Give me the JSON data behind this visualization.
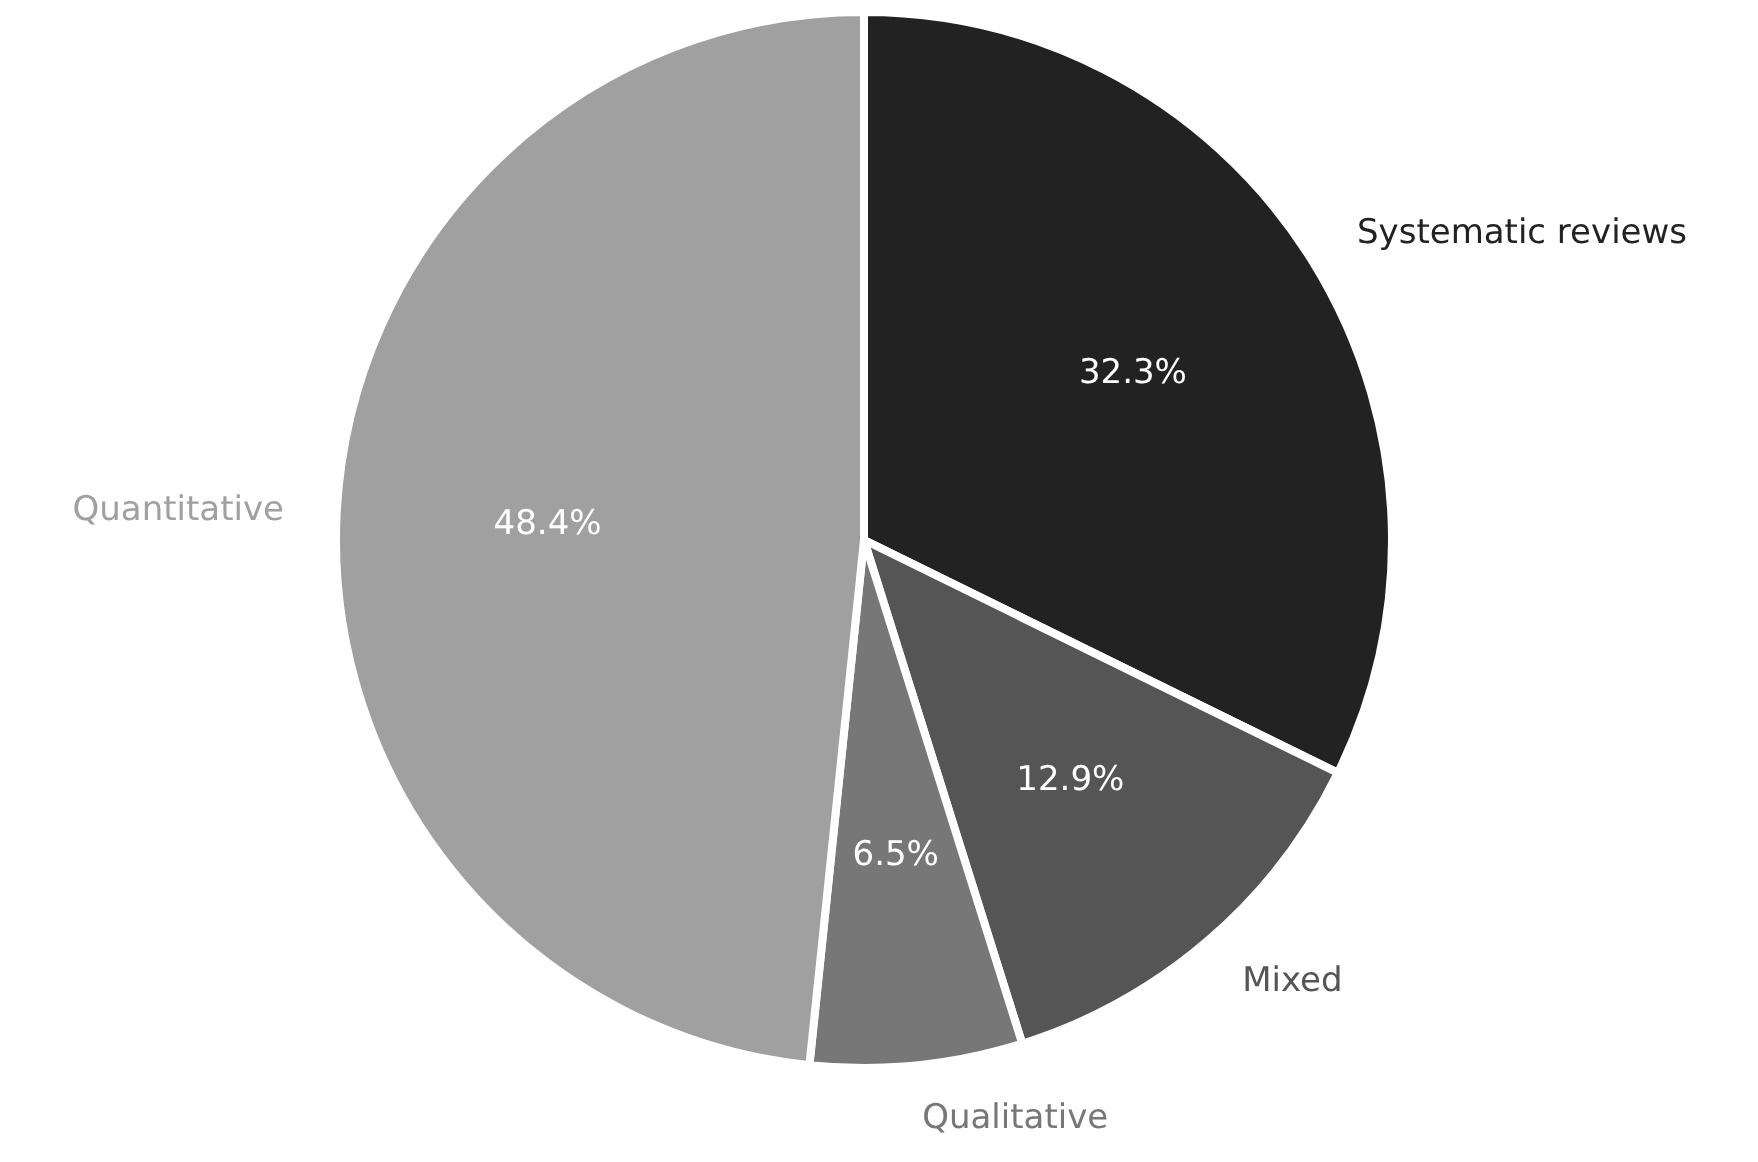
{
  "chart_data": {
    "type": "pie",
    "categories": [
      "Systematic reviews",
      "Mixed",
      "Qualitative",
      "Quantitative"
    ],
    "values": [
      32.3,
      12.9,
      6.5,
      48.4
    ],
    "value_labels": [
      "32.3%",
      "12.9%",
      "6.5%",
      "48.4%"
    ],
    "colors": [
      "#222222",
      "#555555",
      "#777777",
      "#a0a0a0"
    ],
    "legend": false
  }
}
